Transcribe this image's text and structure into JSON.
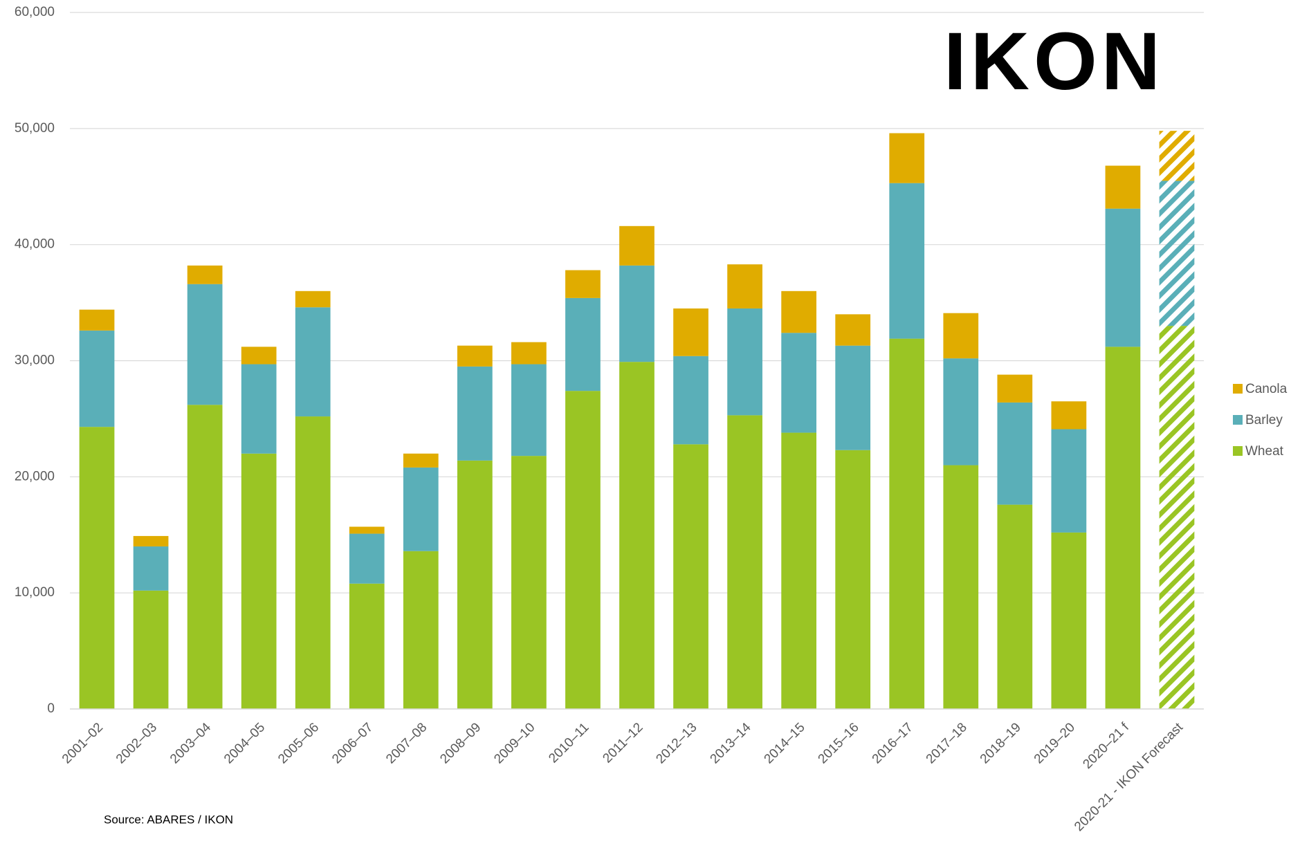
{
  "chart_data": {
    "type": "stacked_bar",
    "categories": [
      "2001–02",
      "2002–03",
      "2003–04",
      "2004–05",
      "2005–06",
      "2006–07",
      "2007–08",
      "2008–09",
      "2009–10",
      "2010–11",
      "2011–12",
      "2012–13",
      "2013–14",
      "2014–15",
      "2015–16",
      "2016–17",
      "2017–18",
      "2018–19",
      "2019–20",
      "2020–21 f",
      "2020-21 - IKON Forecast"
    ],
    "series": [
      {
        "name": "Wheat",
        "color": "#9ac524",
        "values": [
          24300,
          10200,
          26200,
          22000,
          25200,
          10800,
          13600,
          21400,
          21800,
          27400,
          29900,
          22800,
          25300,
          23800,
          22300,
          31900,
          21000,
          17600,
          15200,
          31200,
          33000
        ]
      },
      {
        "name": "Barley",
        "color": "#5aafb8",
        "values": [
          8300,
          3800,
          10400,
          7700,
          9400,
          4300,
          7200,
          8100,
          7900,
          8000,
          8300,
          7600,
          9200,
          8600,
          9000,
          13400,
          9200,
          8800,
          8900,
          11900,
          12500
        ]
      },
      {
        "name": "Canola",
        "color": "#e0ac00",
        "values": [
          1800,
          900,
          1600,
          1500,
          1400,
          600,
          1200,
          1800,
          1900,
          2400,
          3400,
          4100,
          3800,
          3600,
          2700,
          4300,
          3900,
          2400,
          2400,
          3700,
          4300
        ]
      }
    ],
    "hatched_last": true,
    "ylim": [
      0,
      60000
    ],
    "yticks": [
      0,
      {
        "value": 10000,
        "label": "10,000"
      },
      {
        "value": 20000,
        "label": "20,000"
      },
      {
        "value": 30000,
        "label": "30,000"
      },
      {
        "value": 40000,
        "label": "40,000"
      },
      {
        "value": 50000,
        "label": "50,000"
      },
      {
        "value": 60000,
        "label": "60,000"
      }
    ],
    "grid": true,
    "legend": "right",
    "logo": "IKON",
    "source": "Source: ABARES / IKON"
  }
}
